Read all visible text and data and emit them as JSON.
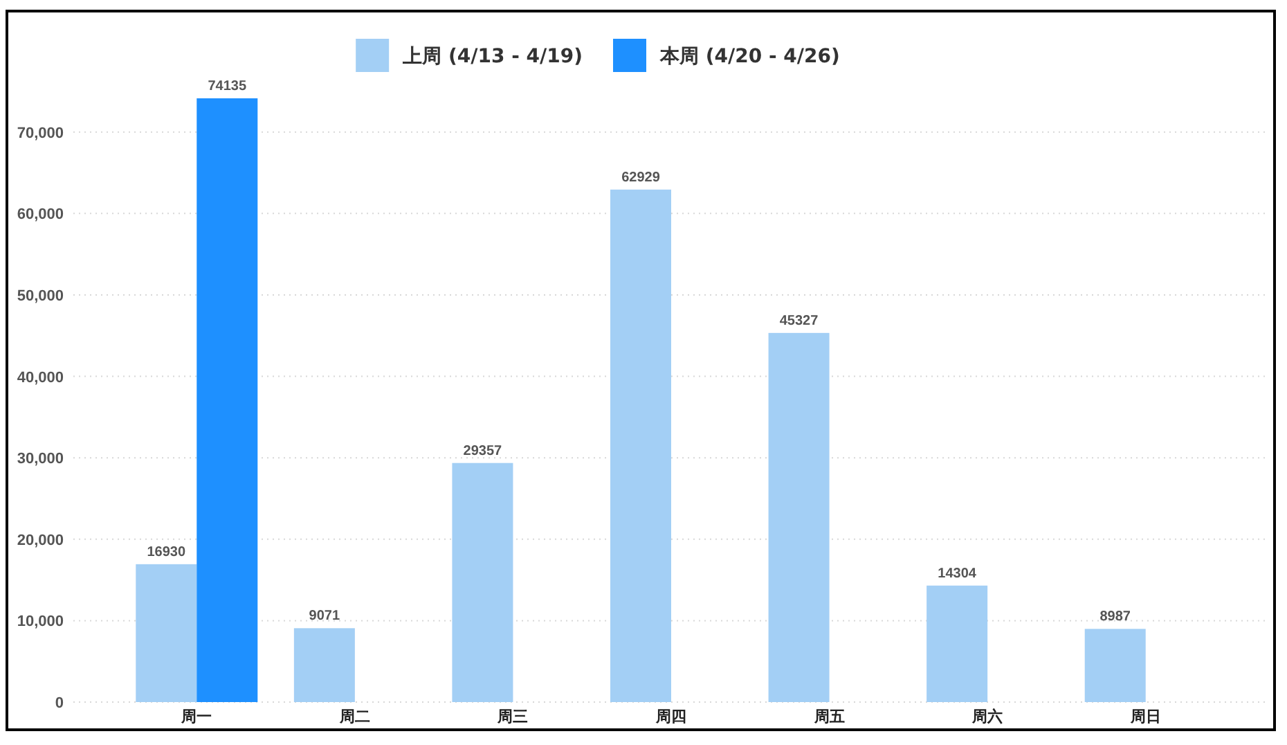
{
  "chart_data": {
    "type": "bar",
    "categories": [
      "周一",
      "周二",
      "周三",
      "周四",
      "周五",
      "周六",
      "周日"
    ],
    "series": [
      {
        "name": "上周 (4/13 - 4/19)",
        "color": "#a3cff5",
        "values": [
          16930,
          9071,
          29357,
          62929,
          45327,
          14304,
          8987
        ]
      },
      {
        "name": "本周 (4/20 - 4/26)",
        "color": "#1e90ff",
        "values": [
          74135,
          null,
          null,
          null,
          null,
          null,
          null
        ]
      }
    ],
    "ylim": [
      0,
      74135
    ],
    "yticks": [
      0,
      {
        "value": 10000,
        "label": "10,000"
      },
      {
        "value": 20000,
        "label": "20,000"
      },
      {
        "value": 30000,
        "label": "30,000"
      },
      {
        "value": 40000,
        "label": "40,000"
      },
      {
        "value": 50000,
        "label": "50,000"
      },
      {
        "value": 60000,
        "label": "60,000"
      },
      {
        "value": 70000,
        "label": "70,000"
      }
    ],
    "grid": "y",
    "legend": "top",
    "data_labels": true
  }
}
